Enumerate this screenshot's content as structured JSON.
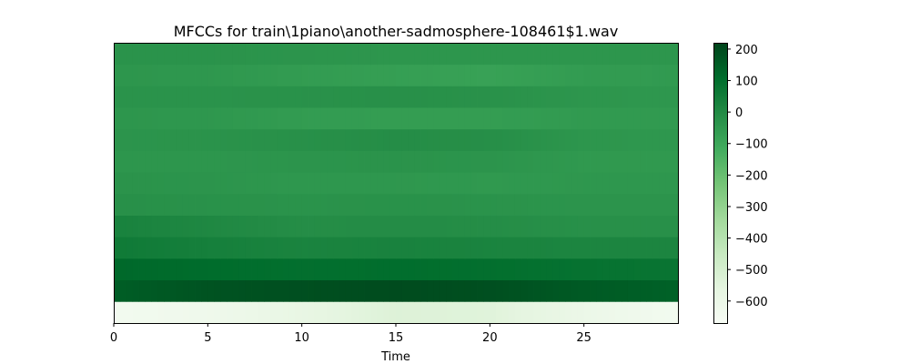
{
  "chart_data": {
    "type": "heatmap",
    "title": "MFCCs for train\\1piano\\another-sadmosphere-108461$1.wav",
    "xlabel": "Time",
    "ylabel": "",
    "xlim": [
      0,
      30
    ],
    "x_ticks": [
      0,
      5,
      10,
      15,
      20,
      25
    ],
    "colormap": "Greens",
    "colorbar": {
      "vmin": -670,
      "vmax": 220,
      "ticks": [
        200,
        100,
        0,
        -100,
        -200,
        -300,
        -400,
        -500,
        -600
      ],
      "tick_labels": [
        "200",
        "100",
        "0",
        "−100",
        "−200",
        "−300",
        "−400",
        "−500",
        "−600"
      ]
    },
    "n_coefficients": 13,
    "coefficient_rows_bottom_to_top": [
      {
        "index": 0,
        "segments": [
          [
            0,
            -640
          ],
          [
            5,
            -620
          ],
          [
            10,
            -580
          ],
          [
            15,
            -530
          ],
          [
            20,
            -540
          ],
          [
            25,
            -600
          ],
          [
            30,
            -640
          ]
        ]
      },
      {
        "index": 1,
        "segments": [
          [
            0,
            150
          ],
          [
            5,
            180
          ],
          [
            10,
            190
          ],
          [
            15,
            200
          ],
          [
            20,
            190
          ],
          [
            25,
            160
          ],
          [
            30,
            140
          ]
        ]
      },
      {
        "index": 2,
        "segments": [
          [
            0,
            120
          ],
          [
            5,
            110
          ],
          [
            10,
            100
          ],
          [
            15,
            105
          ],
          [
            20,
            100
          ],
          [
            25,
            90
          ],
          [
            30,
            80
          ]
        ]
      },
      {
        "index": 3,
        "segments": [
          [
            0,
            60
          ],
          [
            5,
            40
          ],
          [
            10,
            25
          ],
          [
            15,
            30
          ],
          [
            20,
            25
          ],
          [
            25,
            20
          ],
          [
            30,
            20
          ]
        ]
      },
      {
        "index": 4,
        "segments": [
          [
            0,
            30
          ],
          [
            5,
            10
          ],
          [
            10,
            -10
          ],
          [
            15,
            -5
          ],
          [
            20,
            -10
          ],
          [
            25,
            -20
          ],
          [
            30,
            -20
          ]
        ]
      },
      {
        "index": 5,
        "segments": [
          [
            0,
            -20
          ],
          [
            5,
            -25
          ],
          [
            10,
            -30
          ],
          [
            15,
            -25
          ],
          [
            20,
            -30
          ],
          [
            25,
            -35
          ],
          [
            30,
            -35
          ]
        ]
      },
      {
        "index": 6,
        "segments": [
          [
            0,
            -30
          ],
          [
            5,
            -35
          ],
          [
            10,
            -45
          ],
          [
            15,
            -45
          ],
          [
            20,
            -50
          ],
          [
            25,
            -45
          ],
          [
            30,
            -45
          ]
        ]
      },
      {
        "index": 7,
        "segments": [
          [
            0,
            -40
          ],
          [
            5,
            -40
          ],
          [
            10,
            -35
          ],
          [
            15,
            -30
          ],
          [
            20,
            -35
          ],
          [
            25,
            -50
          ],
          [
            30,
            -50
          ]
        ]
      },
      {
        "index": 8,
        "segments": [
          [
            0,
            -35
          ],
          [
            5,
            -30
          ],
          [
            10,
            -20
          ],
          [
            15,
            -10
          ],
          [
            20,
            -15
          ],
          [
            25,
            -40
          ],
          [
            30,
            -45
          ]
        ]
      },
      {
        "index": 9,
        "segments": [
          [
            0,
            -40
          ],
          [
            5,
            -45
          ],
          [
            10,
            -60
          ],
          [
            15,
            -65
          ],
          [
            20,
            -65
          ],
          [
            25,
            -55
          ],
          [
            30,
            -55
          ]
        ]
      },
      {
        "index": 10,
        "segments": [
          [
            0,
            -30
          ],
          [
            5,
            -30
          ],
          [
            10,
            -25
          ],
          [
            15,
            -20
          ],
          [
            20,
            -25
          ],
          [
            25,
            -40
          ],
          [
            30,
            -45
          ]
        ]
      },
      {
        "index": 11,
        "segments": [
          [
            0,
            -40
          ],
          [
            5,
            -45
          ],
          [
            10,
            -60
          ],
          [
            15,
            -70
          ],
          [
            20,
            -80
          ],
          [
            25,
            -60
          ],
          [
            30,
            -55
          ]
        ]
      },
      {
        "index": 12,
        "segments": [
          [
            0,
            -30
          ],
          [
            5,
            -30
          ],
          [
            10,
            -35
          ],
          [
            15,
            -40
          ],
          [
            20,
            -40
          ],
          [
            25,
            -40
          ],
          [
            30,
            -40
          ]
        ]
      }
    ],
    "grid": false
  },
  "colors": {
    "background": "#ffffff",
    "axis": "#000000"
  }
}
